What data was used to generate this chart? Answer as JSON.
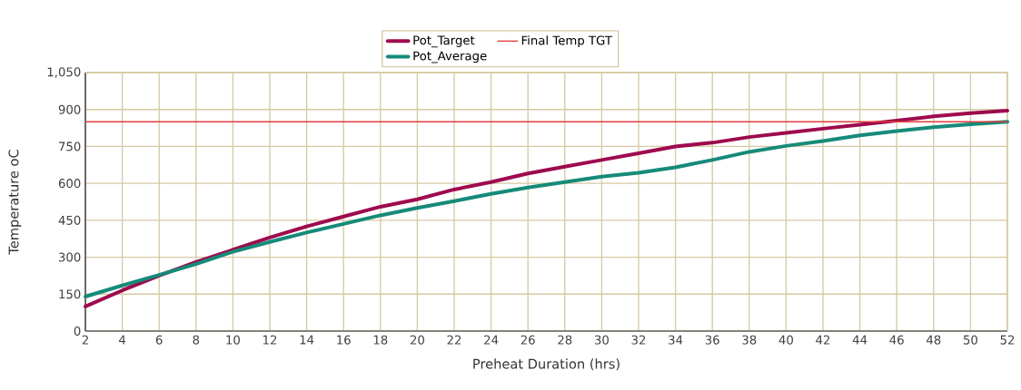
{
  "chart_data": {
    "type": "line",
    "xlabel": "Preheat Duration (hrs)",
    "ylabel": "Temperature oC",
    "x": [
      2,
      4,
      6,
      8,
      10,
      12,
      14,
      16,
      18,
      20,
      22,
      24,
      26,
      28,
      30,
      32,
      34,
      36,
      38,
      40,
      42,
      44,
      46,
      48,
      50,
      52
    ],
    "series": [
      {
        "name": "Pot_Target",
        "color": "#9e0a4e",
        "values": [
          100,
          165,
          225,
          280,
          330,
          380,
          425,
          465,
          505,
          535,
          575,
          605,
          640,
          668,
          695,
          722,
          750,
          765,
          788,
          805,
          822,
          838,
          855,
          872,
          885,
          895
        ]
      },
      {
        "name": "Pot_Average",
        "color": "#168a78",
        "values": [
          140,
          185,
          228,
          272,
          322,
          362,
          400,
          435,
          470,
          500,
          528,
          557,
          583,
          605,
          627,
          643,
          665,
          695,
          728,
          752,
          772,
          795,
          812,
          828,
          840,
          850
        ]
      }
    ],
    "ref_lines": [
      {
        "axis": "y",
        "value": 850,
        "label": "Final Temp TGT",
        "color": "#e03c3c",
        "line_style": "solid"
      }
    ],
    "xlim": [
      2,
      52
    ],
    "xticks": [
      2,
      4,
      6,
      8,
      10,
      12,
      14,
      16,
      18,
      20,
      22,
      24,
      26,
      28,
      30,
      32,
      34,
      36,
      38,
      40,
      42,
      44,
      46,
      48,
      50,
      52
    ],
    "ylim": [
      0,
      1050
    ],
    "yticks": [
      0,
      150,
      300,
      450,
      600,
      750,
      900,
      {
        "value": 1050,
        "label": "1,050"
      }
    ],
    "grid": true,
    "legend": "top",
    "marker": "none",
    "line_style": "solid"
  }
}
